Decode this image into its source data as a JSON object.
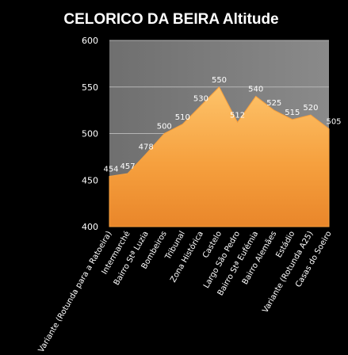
{
  "chart_data": {
    "type": "area",
    "title": "CELORICO DA BEIRA Altitude",
    "categories": [
      "Variante (Rotunda para a Ratoeira)",
      "Intermarché",
      "Bairro Stª Luzia",
      "Bombeiros",
      "Tribunal",
      "Zona Histórica",
      "Castelo",
      "Largo São Pedro",
      "Bairro Stª Eufémia",
      "Bairro Alemães",
      "Estádio",
      "Variante (Rotunda A25)",
      "Casas do Soeiro"
    ],
    "values": [
      454,
      457,
      478,
      500,
      510,
      530,
      550,
      512,
      540,
      525,
      515,
      520,
      505
    ],
    "value_labels": [
      "454",
      "457",
      "478",
      "500",
      "510",
      "530",
      "550",
      "512",
      "540",
      "525",
      "515",
      "520",
      "505"
    ],
    "ylim": [
      400,
      600
    ],
    "yticks": [
      400,
      450,
      500,
      550,
      600
    ],
    "ytick_labels": [
      "400",
      "450",
      "500",
      "550",
      "600"
    ],
    "grid": true,
    "legend": "none",
    "colors": {
      "background": "#000000",
      "plot_background": "#7f7f7f",
      "gridline": "#b5b5b5",
      "area_top": "#fdc36a",
      "area_mid": "#f6a03e",
      "area_bottom": "#e9862a"
    }
  }
}
